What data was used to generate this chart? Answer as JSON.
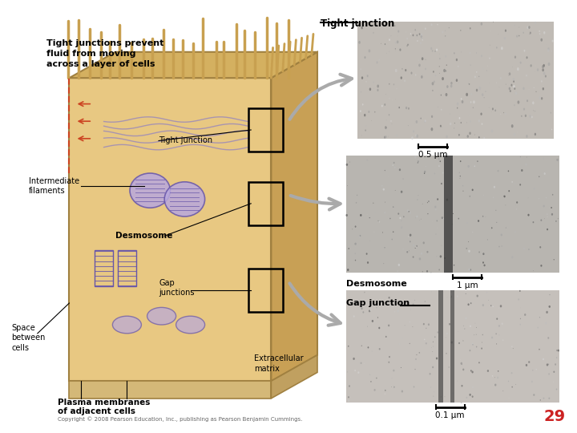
{
  "title": "",
  "page_number": "29",
  "background_color": "#ffffff",
  "labels": {
    "top_left_text": "Tight junctions prevent\nfluid from moving\nacross a layer of cells",
    "tight_junction_label": "Tight junction",
    "tight_junction_label2": "Tight junction",
    "intermediate_filaments": "Intermediate\nfilaments",
    "desmosome": "Desmosome",
    "gap_junctions": "Gap\njunctions",
    "space_between_cells": "Space\nbetween\ncells",
    "plasma_membranes": "Plasma membranes\nof adjacent cells",
    "extracellular_matrix": "Extracellular\nmatrix",
    "gap_junction_label": "Gap junction",
    "desmosome_label": "Desmosome",
    "scale1": "0.5 µm",
    "scale2": "1 µm",
    "scale3": "0.1 µm",
    "copyright": "Copyright © 2008 Pearson Education, Inc., publishing as Pearson Benjamin Cummings."
  },
  "colors": {
    "cell_body": "#e8c882",
    "cell_top_villi": "#c8a050",
    "tight_junction_red": "#cc4422",
    "junction_purple": "#9988bb",
    "junction_purple_dark": "#6655aa",
    "junction_purple_light": "#b8a8dd",
    "cell_edge": "#a08040",
    "cell_right": "#c8a055",
    "cell_top": "#d4b060",
    "cell_base": "#d4b878",
    "cell_base_right": "#c0a060",
    "arrow_gray": "#aaaaaa",
    "em1_bg": "#c0bbb5",
    "em2_bg": "#b8b5b0",
    "em3_bg": "#c5c0bb",
    "em_stripe": "#2a2a2a",
    "scale_bar": "#000000",
    "label_text": "#000000",
    "copyright_color": "#666666",
    "page_num_color": "#cc2222"
  }
}
